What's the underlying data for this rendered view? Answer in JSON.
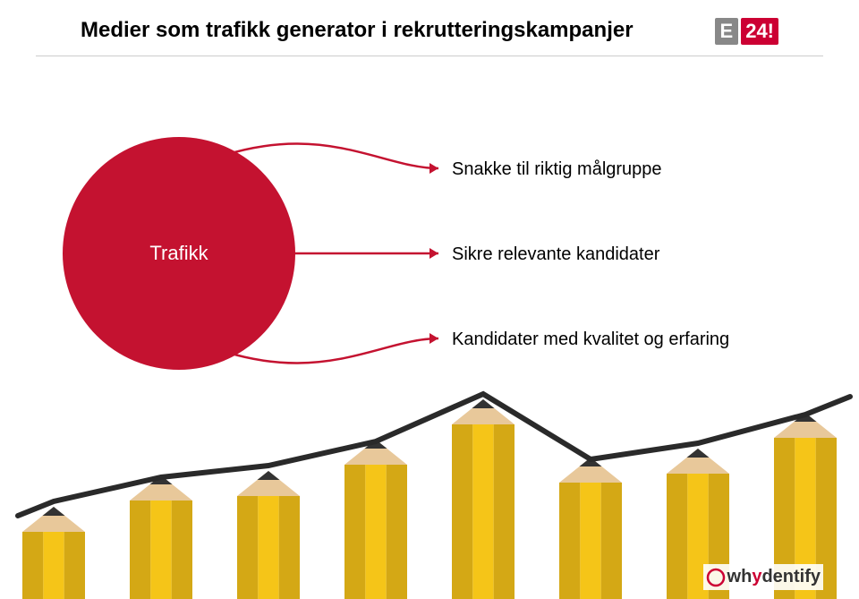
{
  "header": {
    "title": "Medier som trafikk generator i rekrutteringskampanjer",
    "logo_e": "E",
    "logo_24": "24!"
  },
  "diagram": {
    "circle_label": "Trafikk",
    "circle_color": "#c41230",
    "labels": {
      "top": "Snakke til riktig målgruppe",
      "middle": "Sikre relevante kandidater",
      "bottom": "Kandidater med kvalitet og erfaring"
    },
    "label_fontsize": 20,
    "label_color": "#000000",
    "connector_color": "#c41230",
    "background_color": "#ffffff"
  },
  "pencils": {
    "body_color": "#f5c518",
    "body_color_dark": "#d4a815",
    "tip_wood": "#e8c89a",
    "tip_lead": "#333333",
    "ferrule": "#a0a0a0",
    "eraser": "#d88080",
    "heights": [
      75,
      110,
      115,
      150,
      195,
      130,
      140,
      180
    ],
    "trend_line_color": "#2a2a2a"
  },
  "footer": {
    "brand_prefix": "wh",
    "brand_y": "y",
    "brand_suffix": "dentify"
  },
  "colors": {
    "header_border": "#cccccc",
    "logo_e_bg": "#888888",
    "logo_24_bg": "#cc0033"
  }
}
